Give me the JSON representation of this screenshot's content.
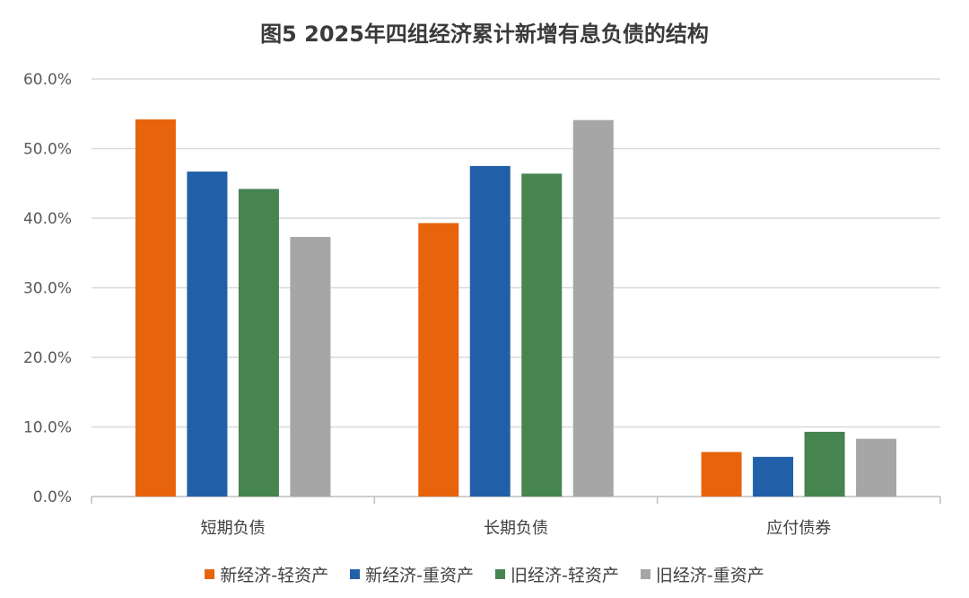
{
  "chart_data": {
    "type": "bar",
    "title": "图5  2025年四组经济累计新增有息负债的结构",
    "categories": [
      "短期负债",
      "长期负债",
      "应付债券"
    ],
    "ylim": [
      0,
      60
    ],
    "yticks": [
      "0.0%",
      "10.0%",
      "20.0%",
      "30.0%",
      "40.0%",
      "50.0%",
      "60.0%"
    ],
    "grid": true,
    "legend_position": "bottom",
    "series": [
      {
        "name": "新经济-轻资产",
        "color": "#E8640C",
        "values": [
          54.2,
          39.3,
          6.4
        ]
      },
      {
        "name": "新经济-重资产",
        "color": "#2160A8",
        "values": [
          46.7,
          47.5,
          5.7
        ]
      },
      {
        "name": "旧经济-轻资产",
        "color": "#468450",
        "values": [
          44.2,
          46.4,
          9.3
        ]
      },
      {
        "name": "旧经济-重资产",
        "color": "#A6A6A6",
        "values": [
          37.3,
          54.1,
          8.3
        ]
      }
    ]
  }
}
